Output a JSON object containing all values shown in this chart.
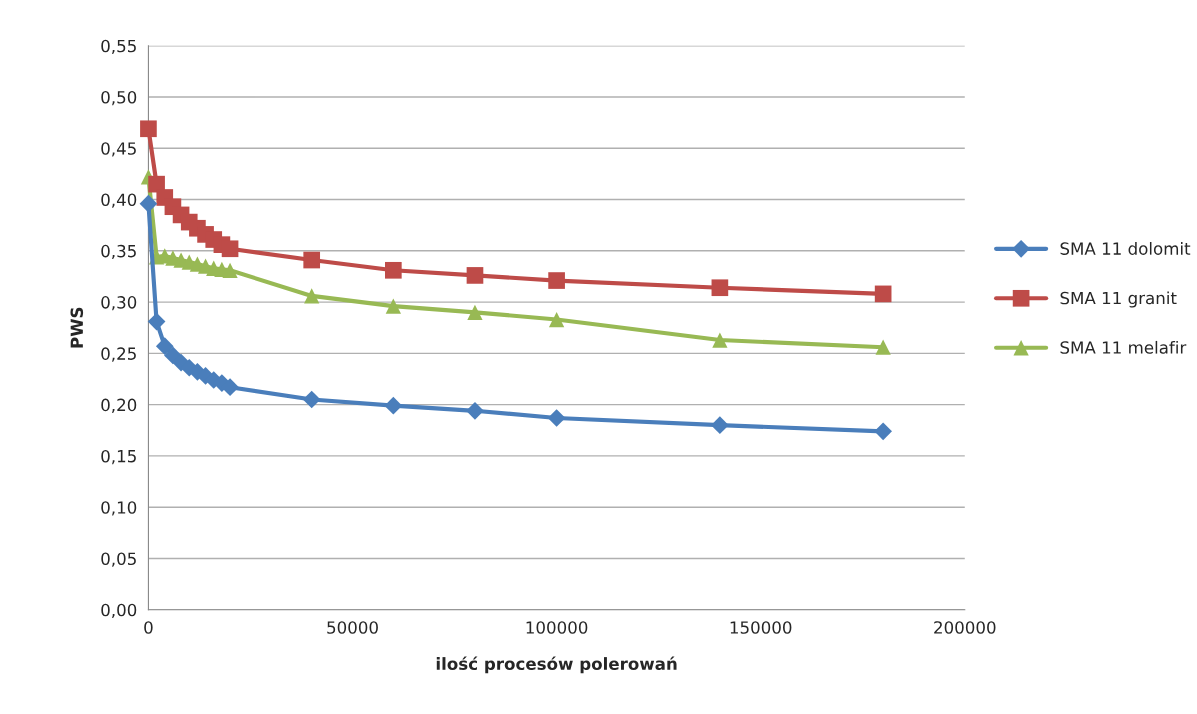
{
  "chart_data": {
    "type": "line",
    "xlabel": "ilość procesów polerowań",
    "ylabel": "PWS",
    "x": [
      0,
      2000,
      4000,
      6000,
      8000,
      10000,
      12000,
      14000,
      16000,
      18000,
      20000,
      40000,
      60000,
      80000,
      100000,
      140000,
      180000
    ],
    "series": [
      {
        "name": "SMA 11 dolomit",
        "color": "#4a7ebb",
        "marker": "diamond",
        "values": [
          0.396,
          0.281,
          0.257,
          0.248,
          0.241,
          0.236,
          0.232,
          0.228,
          0.224,
          0.221,
          0.217,
          0.205,
          0.199,
          0.194,
          0.187,
          0.18,
          0.174
        ]
      },
      {
        "name": "SMA 11 granit",
        "color": "#be4b48",
        "marker": "square",
        "values": [
          0.469,
          0.415,
          0.402,
          0.393,
          0.385,
          0.378,
          0.372,
          0.366,
          0.361,
          0.356,
          0.352,
          0.341,
          0.331,
          0.326,
          0.321,
          0.314,
          0.308
        ]
      },
      {
        "name": "SMA 11 melafir",
        "color": "#98b954",
        "marker": "triangle",
        "values": [
          0.422,
          0.344,
          0.345,
          0.343,
          0.341,
          0.339,
          0.337,
          0.335,
          0.333,
          0.332,
          0.331,
          0.306,
          0.296,
          0.29,
          0.283,
          0.263,
          0.256
        ]
      }
    ],
    "xlim": [
      0,
      200000
    ],
    "xticks": [
      0,
      50000,
      100000,
      150000,
      200000
    ],
    "ylim": [
      0,
      0.55
    ],
    "yticks": [
      {
        "value": 0,
        "label": "0,00"
      },
      {
        "value": 0.05,
        "label": "0,05"
      },
      {
        "value": 0.1,
        "label": "0,10"
      },
      {
        "value": 0.15,
        "label": "0,15"
      },
      {
        "value": 0.2,
        "label": "0,20"
      },
      {
        "value": 0.25,
        "label": "0,25"
      },
      {
        "value": 0.3,
        "label": "0,30"
      },
      {
        "value": 0.35,
        "label": "0,35"
      },
      {
        "value": 0.4,
        "label": "0,40"
      },
      {
        "value": 0.45,
        "label": "0,45"
      },
      {
        "value": 0.5,
        "label": "0,50"
      },
      {
        "value": 0.55,
        "label": "0,55"
      }
    ],
    "grid": "y",
    "legend": "right",
    "line_style": "solid"
  }
}
